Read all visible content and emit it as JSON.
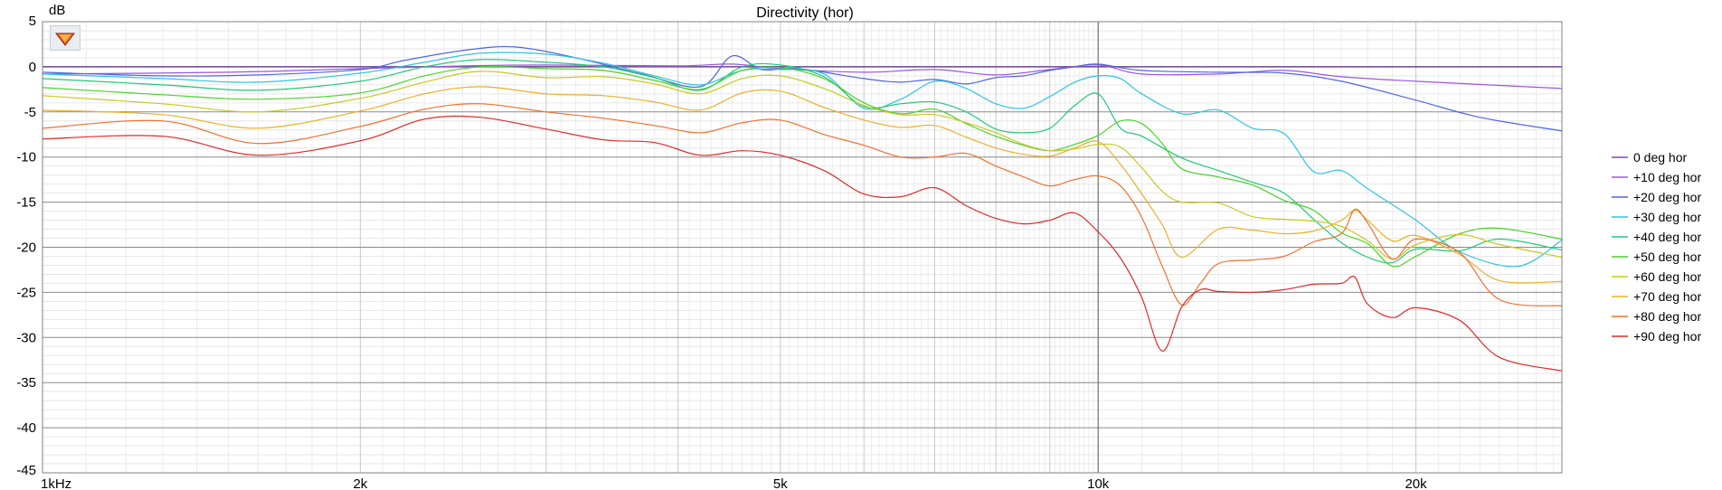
{
  "chart_data": {
    "type": "line",
    "title": "Directivity (hor)",
    "ylabel": "dB",
    "xlabel": "",
    "x_scale": "log",
    "xlim": [
      1000,
      27500
    ],
    "ylim": [
      -45,
      5
    ],
    "x_ticks": [
      {
        "value": 1000,
        "label": "1kHz"
      },
      {
        "value": 2000,
        "label": "2k"
      },
      {
        "value": 5000,
        "label": "5k"
      },
      {
        "value": 10000,
        "label": "10k"
      },
      {
        "value": 20000,
        "label": "20k"
      }
    ],
    "y_ticks": [
      5,
      0,
      -5,
      -10,
      -15,
      -20,
      -25,
      -30,
      -35,
      -40,
      -45
    ],
    "grid": true,
    "legend_position": "right",
    "series": [
      {
        "name": "0 deg hor",
        "color": "#7a4fa8",
        "x": [
          1000,
          2000,
          3000,
          5000,
          7000,
          10000,
          15000,
          20000,
          27500
        ],
        "y": [
          0,
          0,
          0,
          0,
          0,
          0,
          0,
          0,
          0
        ]
      },
      {
        "name": "+10 deg hor",
        "color": "#9a55e0",
        "x": [
          1000,
          1500,
          2000,
          2500,
          3000,
          4000,
          4500,
          5000,
          6000,
          7000,
          8000,
          9000,
          10000,
          11000,
          13000,
          15000,
          17000,
          20000,
          27500
        ],
        "y": [
          -0.8,
          -0.6,
          -0.2,
          0.1,
          0.2,
          0.1,
          0.3,
          -0.2,
          -0.6,
          -0.3,
          -0.9,
          -0.3,
          0.2,
          -0.8,
          -0.8,
          -0.4,
          -1.1,
          -1.6,
          -2.4
        ]
      },
      {
        "name": "+20 deg hor",
        "color": "#4f64e0",
        "x": [
          1000,
          1300,
          1600,
          2000,
          2200,
          2500,
          2800,
          3200,
          3700,
          4200,
          4500,
          4800,
          5200,
          6000,
          6500,
          7000,
          7500,
          8000,
          8500,
          9000,
          9500,
          10000,
          11000,
          13000,
          15000,
          17000,
          20000,
          23000,
          27500
        ],
        "y": [
          -0.6,
          -1.0,
          -0.9,
          -0.3,
          0.7,
          1.8,
          2.2,
          1.0,
          -0.8,
          -2.2,
          1.2,
          -0.3,
          -0.2,
          -1.3,
          -1.7,
          -1.4,
          -1.9,
          -1.2,
          -1.0,
          -0.4,
          0.0,
          0.3,
          -0.4,
          -0.6,
          -0.7,
          -1.6,
          -3.7,
          -5.6,
          -7.1
        ]
      },
      {
        "name": "+30 deg hor",
        "color": "#2ec4e0",
        "x": [
          1000,
          1300,
          1600,
          2000,
          2300,
          2600,
          3000,
          3400,
          3800,
          4200,
          4600,
          5000,
          5500,
          6000,
          6500,
          7000,
          7500,
          8000,
          8500,
          9000,
          9500,
          10000,
          10500,
          11000,
          12000,
          13000,
          14000,
          15000,
          16000,
          17000,
          18000,
          20000,
          22000,
          25000,
          27500
        ],
        "y": [
          -0.8,
          -1.3,
          -1.7,
          -0.7,
          0.5,
          1.5,
          1.4,
          0.4,
          -1.0,
          -2.0,
          -0.4,
          -0.3,
          -0.8,
          -4.6,
          -3.6,
          -1.6,
          -2.4,
          -4.1,
          -4.6,
          -3.3,
          -1.7,
          -1.0,
          -1.3,
          -3.0,
          -5.2,
          -4.8,
          -6.8,
          -7.4,
          -11.6,
          -11.5,
          -13.5,
          -17.0,
          -20.5,
          -22.1,
          -19.2
        ]
      },
      {
        "name": "+40 deg hor",
        "color": "#22c878",
        "x": [
          1000,
          1300,
          1600,
          2000,
          2300,
          2600,
          3000,
          3400,
          3800,
          4200,
          4600,
          5000,
          5500,
          6000,
          6500,
          7000,
          7500,
          8000,
          8500,
          9000,
          9500,
          10000,
          10500,
          11000,
          12000,
          13000,
          14000,
          15000,
          16000,
          17000,
          18000,
          19000,
          20000,
          22000,
          24000,
          27500
        ],
        "y": [
          -1.3,
          -2.0,
          -2.6,
          -1.6,
          0.0,
          0.8,
          0.5,
          0.0,
          -1.2,
          -2.6,
          0.0,
          0.2,
          -1.1,
          -4.4,
          -4.1,
          -3.9,
          -5.0,
          -6.9,
          -7.3,
          -6.8,
          -4.3,
          -3.0,
          -6.8,
          -7.7,
          -10.1,
          -11.5,
          -12.8,
          -14.0,
          -16.9,
          -19.5,
          -21.1,
          -21.7,
          -20.2,
          -20.4,
          -19.1,
          -20.3
        ]
      },
      {
        "name": "+50 deg hor",
        "color": "#49d22a",
        "x": [
          1000,
          1300,
          1600,
          2000,
          2300,
          2600,
          3000,
          3400,
          3800,
          4200,
          4600,
          5000,
          5500,
          6000,
          6500,
          7000,
          7500,
          8000,
          8500,
          9000,
          9500,
          10000,
          10500,
          11000,
          11500,
          12000,
          13000,
          14000,
          15000,
          16000,
          17000,
          18000,
          19000,
          20000,
          22000,
          24000,
          27500
        ],
        "y": [
          -2.3,
          -3.1,
          -3.6,
          -2.9,
          -1.0,
          0.0,
          -0.2,
          -0.4,
          -1.5,
          -2.5,
          -0.4,
          -0.1,
          -1.3,
          -4.0,
          -5.2,
          -4.7,
          -6.3,
          -7.7,
          -8.7,
          -9.3,
          -8.6,
          -7.6,
          -6.0,
          -6.3,
          -8.5,
          -11.3,
          -12.2,
          -13.1,
          -14.8,
          -15.9,
          -18.4,
          -19.6,
          -22.1,
          -21.0,
          -18.5,
          -17.9,
          -19.1
        ]
      },
      {
        "name": "+60 deg hor",
        "color": "#c8c822",
        "x": [
          1000,
          1300,
          1600,
          2000,
          2300,
          2600,
          3000,
          3400,
          3800,
          4200,
          4600,
          5000,
          5500,
          6000,
          6500,
          7000,
          7500,
          8000,
          8500,
          9000,
          9500,
          10000,
          10500,
          11000,
          11500,
          12000,
          13000,
          14000,
          15000,
          16000,
          17000,
          18000,
          19000,
          20000,
          22000,
          24000,
          27500
        ],
        "y": [
          -3.2,
          -4.1,
          -5.0,
          -3.5,
          -1.7,
          -0.5,
          -1.2,
          -1.1,
          -1.9,
          -3.0,
          -1.3,
          -1.0,
          -2.4,
          -4.3,
          -5.3,
          -5.3,
          -6.2,
          -7.3,
          -8.6,
          -9.3,
          -9.1,
          -8.6,
          -8.9,
          -11.2,
          -13.8,
          -15.0,
          -15.1,
          -16.6,
          -16.9,
          -17.1,
          -17.7,
          -19.3,
          -21.3,
          -19.7,
          -18.6,
          -19.7,
          -21.1
        ]
      },
      {
        "name": "+70 deg hor",
        "color": "#e8b028",
        "x": [
          1000,
          1300,
          1600,
          2000,
          2300,
          2600,
          3000,
          3400,
          3800,
          4200,
          4600,
          5000,
          5500,
          6000,
          6500,
          7000,
          7500,
          8000,
          8500,
          9000,
          9500,
          10000,
          10500,
          11000,
          11500,
          12000,
          13000,
          14000,
          15000,
          16000,
          17000,
          17500,
          18000,
          19000,
          20000,
          22000,
          24000,
          27500
        ],
        "y": [
          -4.8,
          -5.3,
          -6.8,
          -4.9,
          -3.0,
          -2.2,
          -3.0,
          -3.2,
          -3.9,
          -4.8,
          -2.9,
          -2.7,
          -4.5,
          -5.9,
          -6.7,
          -6.5,
          -7.8,
          -9.0,
          -9.7,
          -9.9,
          -9.0,
          -8.3,
          -10.8,
          -14.1,
          -17.5,
          -21.1,
          -18.0,
          -18.1,
          -18.5,
          -18.2,
          -17.0,
          -15.9,
          -17.0,
          -19.3,
          -18.7,
          -20.8,
          -23.7,
          -23.8
        ]
      },
      {
        "name": "+80 deg hor",
        "color": "#f07030",
        "x": [
          1000,
          1300,
          1600,
          2000,
          2300,
          2600,
          3000,
          3400,
          3800,
          4200,
          4600,
          5000,
          5500,
          6000,
          6500,
          7000,
          7500,
          8000,
          8500,
          9000,
          9500,
          10000,
          10500,
          11000,
          11500,
          12000,
          12500,
          13000,
          14000,
          15000,
          16000,
          17000,
          17500,
          18000,
          19000,
          20000,
          22000,
          24000,
          27500
        ],
        "y": [
          -6.8,
          -6.0,
          -8.5,
          -6.6,
          -4.7,
          -4.1,
          -5.0,
          -5.7,
          -6.5,
          -7.3,
          -6.2,
          -5.9,
          -7.5,
          -8.7,
          -10.0,
          -10.0,
          -9.6,
          -11.0,
          -12.2,
          -13.2,
          -12.5,
          -12.1,
          -13.2,
          -16.7,
          -22.1,
          -26.4,
          -24.0,
          -21.8,
          -21.4,
          -21.0,
          -19.4,
          -18.5,
          -15.8,
          -17.3,
          -21.3,
          -19.1,
          -20.6,
          -25.8,
          -26.5
        ]
      },
      {
        "name": "+90 deg hor",
        "color": "#e02828",
        "x": [
          1000,
          1300,
          1600,
          2000,
          2300,
          2600,
          3000,
          3400,
          3800,
          4200,
          4600,
          5000,
          5500,
          6000,
          6500,
          7000,
          7500,
          8000,
          8500,
          9000,
          9500,
          10000,
          10500,
          11000,
          11500,
          12000,
          12500,
          13000,
          14000,
          15000,
          16000,
          17000,
          17500,
          18000,
          19000,
          20000,
          22000,
          24000,
          27500
        ],
        "y": [
          -8.0,
          -7.7,
          -9.8,
          -8.2,
          -5.8,
          -5.6,
          -6.9,
          -8.1,
          -8.4,
          -9.8,
          -9.3,
          -9.8,
          -11.5,
          -14.1,
          -14.4,
          -13.4,
          -15.4,
          -16.8,
          -17.4,
          -17.0,
          -16.2,
          -18.3,
          -21.2,
          -25.6,
          -31.5,
          -26.6,
          -24.7,
          -24.9,
          -25.0,
          -24.7,
          -24.1,
          -24.0,
          -23.3,
          -26.3,
          -27.8,
          -26.7,
          -28.1,
          -32.2,
          -33.7
        ]
      }
    ]
  }
}
